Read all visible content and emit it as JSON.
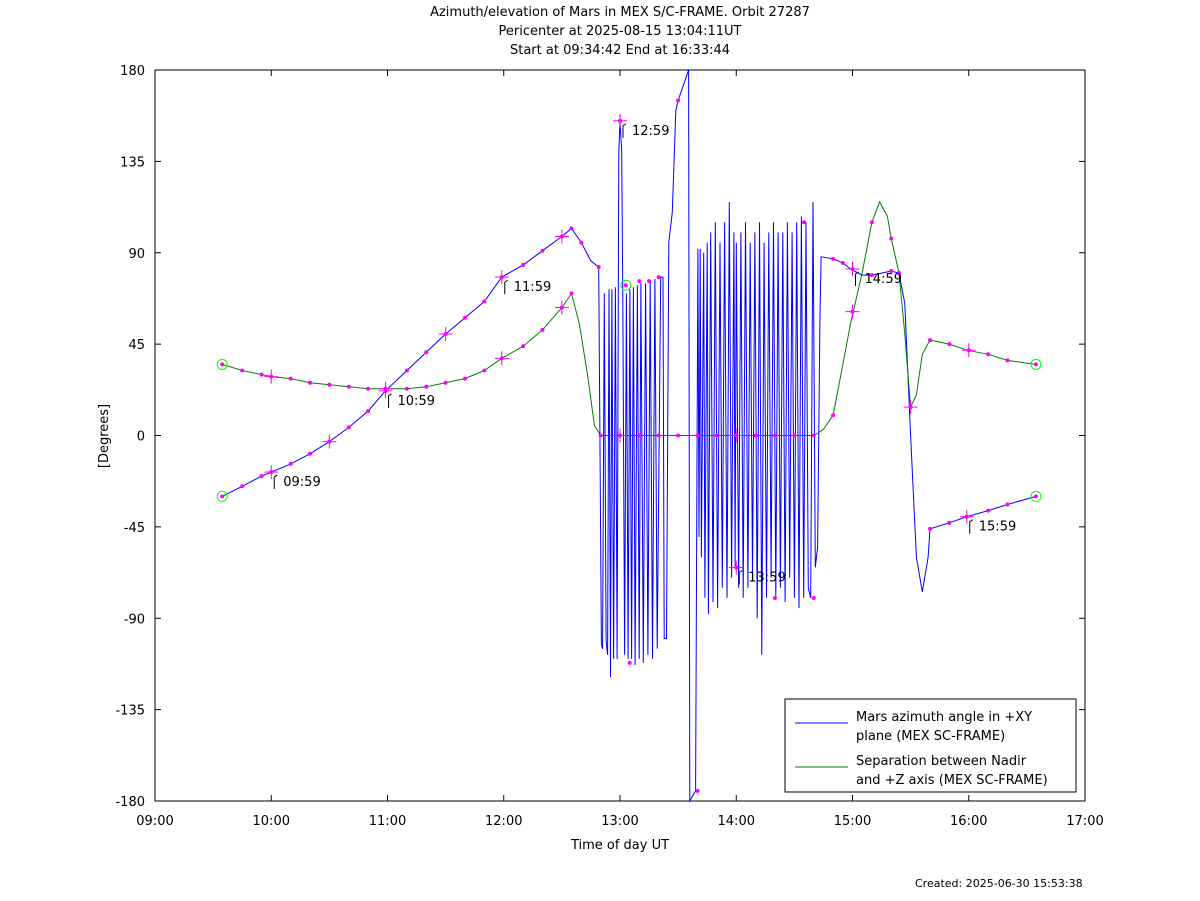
{
  "header": {
    "title_line1": "Azimuth/elevation of Mars in MEX S/C-FRAME.  Orbit 27287",
    "title_line2": "Pericenter at 2025-08-15 13:04:11UT",
    "title_line3": "Start at 09:34:42 End at 16:33:44"
  },
  "footer": {
    "created": "Created: 2025-06-30 15:53:38"
  },
  "colors": {
    "azimuth": "#0000ff",
    "separation": "#008000",
    "markers": "#ff00ff",
    "endpoints": "#00ff00"
  },
  "chart_data": {
    "type": "line",
    "xlabel": "Time of day UT",
    "ylabel": "[Degrees]",
    "xlim": [
      9,
      17
    ],
    "ylim": [
      -180,
      180
    ],
    "xticks": [
      9,
      10,
      11,
      12,
      13,
      14,
      15,
      16,
      17
    ],
    "xtick_labels": [
      "09:00",
      "10:00",
      "11:00",
      "12:00",
      "13:00",
      "14:00",
      "15:00",
      "16:00",
      "17:00"
    ],
    "yticks": [
      180,
      135,
      90,
      45,
      0,
      -45,
      -90,
      -135,
      -180
    ],
    "ytick_labels": [
      "180",
      "135",
      "90",
      "45",
      "0",
      "-45",
      "-90",
      "-135",
      "-180"
    ],
    "grid": false,
    "legend_position": "bottom-right",
    "series": [
      {
        "name": "Mars azimuth angle in +XY plane (MEX SC-FRAME)",
        "legend_line1": "Mars azimuth angle in +XY",
        "legend_line2": "plane (MEX SC-FRAME)",
        "color": "#0000ff",
        "points": [
          [
            9.578,
            -30
          ],
          [
            9.75,
            -25
          ],
          [
            9.917,
            -20
          ],
          [
            10.0,
            -18
          ],
          [
            10.167,
            -14
          ],
          [
            10.333,
            -9
          ],
          [
            10.5,
            -3
          ],
          [
            10.667,
            4
          ],
          [
            10.833,
            12
          ],
          [
            10.983,
            22
          ],
          [
            11.167,
            32
          ],
          [
            11.333,
            41
          ],
          [
            11.5,
            50
          ],
          [
            11.667,
            58
          ],
          [
            11.833,
            66
          ],
          [
            11.983,
            78
          ],
          [
            12.167,
            84
          ],
          [
            12.333,
            91
          ],
          [
            12.5,
            98
          ],
          [
            12.583,
            102
          ],
          [
            12.667,
            95
          ],
          [
            12.75,
            86
          ],
          [
            12.817,
            83
          ],
          [
            12.83,
            -20
          ],
          [
            12.84,
            -103
          ],
          [
            12.85,
            -105
          ],
          [
            12.865,
            70
          ],
          [
            12.88,
            -101
          ],
          [
            12.893,
            -108
          ],
          [
            12.905,
            72
          ],
          [
            12.918,
            -119
          ],
          [
            12.93,
            72
          ],
          [
            12.945,
            -110
          ],
          [
            12.96,
            73
          ],
          [
            12.975,
            -110
          ],
          [
            12.99,
            140
          ],
          [
            13.0,
            155
          ],
          [
            13.015,
            140
          ],
          [
            13.025,
            60
          ],
          [
            13.04,
            -108
          ],
          [
            13.055,
            70
          ],
          [
            13.07,
            -110
          ],
          [
            13.085,
            72
          ],
          [
            13.1,
            -110
          ],
          [
            13.115,
            73
          ],
          [
            13.13,
            -113
          ],
          [
            13.15,
            74
          ],
          [
            13.165,
            -110
          ],
          [
            13.18,
            75
          ],
          [
            13.2,
            -112
          ],
          [
            13.22,
            75
          ],
          [
            13.24,
            -108
          ],
          [
            13.26,
            76
          ],
          [
            13.28,
            -110
          ],
          [
            13.3,
            77
          ],
          [
            13.32,
            -105
          ],
          [
            13.35,
            78
          ],
          [
            13.37,
            78
          ],
          [
            13.38,
            -100
          ],
          [
            13.4,
            -100
          ],
          [
            13.42,
            95
          ],
          [
            13.45,
            110
          ],
          [
            13.48,
            160
          ],
          [
            13.5,
            165
          ],
          [
            13.56,
            175
          ],
          [
            13.59,
            180
          ],
          [
            13.6,
            -180
          ],
          [
            13.62,
            -178
          ],
          [
            13.65,
            -175
          ],
          [
            13.67,
            92
          ],
          [
            13.68,
            -50
          ],
          [
            13.69,
            92
          ],
          [
            13.7,
            -60
          ],
          [
            13.72,
            90
          ],
          [
            13.73,
            -80
          ],
          [
            13.75,
            95
          ],
          [
            13.76,
            -88
          ],
          [
            13.78,
            100
          ],
          [
            13.8,
            -82
          ],
          [
            13.82,
            105
          ],
          [
            13.84,
            -85
          ],
          [
            13.86,
            95
          ],
          [
            13.88,
            -75
          ],
          [
            13.9,
            105
          ],
          [
            13.92,
            -80
          ],
          [
            13.94,
            115
          ],
          [
            13.96,
            -70
          ],
          [
            13.98,
            100
          ],
          [
            13.99,
            -65
          ],
          [
            14.0,
            95
          ],
          [
            14.02,
            -75
          ],
          [
            14.04,
            100
          ],
          [
            14.06,
            -80
          ],
          [
            14.08,
            105
          ],
          [
            14.1,
            -75
          ],
          [
            14.12,
            95
          ],
          [
            14.14,
            -70
          ],
          [
            14.16,
            100
          ],
          [
            14.18,
            -90
          ],
          [
            14.2,
            105
          ],
          [
            14.22,
            -108
          ],
          [
            14.24,
            95
          ],
          [
            14.26,
            -80
          ],
          [
            14.28,
            100
          ],
          [
            14.3,
            -70
          ],
          [
            14.32,
            105
          ],
          [
            14.34,
            -80
          ],
          [
            14.36,
            100
          ],
          [
            14.38,
            -75
          ],
          [
            14.4,
            100
          ],
          [
            14.42,
            -82
          ],
          [
            14.44,
            105
          ],
          [
            14.46,
            -70
          ],
          [
            14.48,
            100
          ],
          [
            14.5,
            -80
          ],
          [
            14.52,
            105
          ],
          [
            14.54,
            -85
          ],
          [
            14.56,
            108
          ],
          [
            14.58,
            -80
          ],
          [
            14.6,
            105
          ],
          [
            14.62,
            -75
          ],
          [
            14.64,
            -80
          ],
          [
            14.66,
            115
          ],
          [
            14.68,
            -65
          ],
          [
            14.7,
            -55
          ],
          [
            14.72,
            60
          ],
          [
            14.73,
            88
          ],
          [
            14.833,
            87
          ],
          [
            14.917,
            85
          ],
          [
            14.983,
            82
          ],
          [
            15.083,
            79
          ],
          [
            15.167,
            79
          ],
          [
            15.25,
            80
          ],
          [
            15.333,
            81
          ],
          [
            15.4,
            80
          ],
          [
            15.45,
            65
          ],
          [
            15.5,
            0
          ],
          [
            15.55,
            -60
          ],
          [
            15.6,
            -77
          ],
          [
            15.65,
            -60
          ],
          [
            15.667,
            -46
          ],
          [
            15.833,
            -43
          ],
          [
            15.983,
            -40
          ],
          [
            16.167,
            -37
          ],
          [
            16.333,
            -34
          ],
          [
            16.578,
            -30
          ]
        ]
      },
      {
        "name": "Separation between Nadir and +Z axis (MEX SC-FRAME)",
        "legend_line1": "Separation between Nadir",
        "legend_line2": "and +Z axis (MEX SC-FRAME)",
        "color": "#008000",
        "points": [
          [
            9.578,
            35
          ],
          [
            9.75,
            32
          ],
          [
            9.917,
            30
          ],
          [
            10.0,
            29
          ],
          [
            10.167,
            28
          ],
          [
            10.333,
            26
          ],
          [
            10.5,
            25
          ],
          [
            10.667,
            24
          ],
          [
            10.833,
            23
          ],
          [
            10.983,
            23
          ],
          [
            11.167,
            23
          ],
          [
            11.333,
            24
          ],
          [
            11.5,
            26
          ],
          [
            11.667,
            28
          ],
          [
            11.833,
            32
          ],
          [
            11.983,
            38
          ],
          [
            12.167,
            44
          ],
          [
            12.333,
            52
          ],
          [
            12.5,
            63
          ],
          [
            12.583,
            70
          ],
          [
            12.65,
            55
          ],
          [
            12.72,
            30
          ],
          [
            12.78,
            5
          ],
          [
            12.833,
            0
          ],
          [
            13.0,
            0
          ],
          [
            13.5,
            0
          ],
          [
            14.0,
            0
          ],
          [
            14.5,
            0
          ],
          [
            14.667,
            0
          ],
          [
            14.75,
            3
          ],
          [
            14.833,
            10
          ],
          [
            14.9,
            30
          ],
          [
            14.983,
            55
          ],
          [
            15.083,
            80
          ],
          [
            15.167,
            105
          ],
          [
            15.233,
            115
          ],
          [
            15.3,
            108
          ],
          [
            15.333,
            97
          ],
          [
            15.4,
            80
          ],
          [
            15.45,
            50
          ],
          [
            15.5,
            14
          ],
          [
            15.55,
            20
          ],
          [
            15.6,
            40
          ],
          [
            15.667,
            47
          ],
          [
            15.833,
            45
          ],
          [
            15.983,
            42
          ],
          [
            16.167,
            40
          ],
          [
            16.333,
            37
          ],
          [
            16.578,
            35
          ]
        ]
      }
    ],
    "markers": [
      [
        10.0,
        -18
      ],
      [
        10.5,
        -3
      ],
      [
        10.983,
        22
      ],
      [
        11.5,
        50
      ],
      [
        11.983,
        78
      ],
      [
        12.5,
        98
      ],
      [
        13.0,
        155
      ],
      [
        13.0,
        0
      ],
      [
        14.0,
        -65
      ],
      [
        14.0,
        0
      ],
      [
        15.0,
        82
      ],
      [
        15.0,
        61
      ],
      [
        15.5,
        14
      ],
      [
        15.983,
        -40
      ],
      [
        10.0,
        29
      ],
      [
        10.983,
        23
      ],
      [
        11.983,
        38
      ],
      [
        12.5,
        63
      ],
      [
        16.0,
        42
      ]
    ],
    "markers_small": [
      [
        9.75,
        -25
      ],
      [
        9.917,
        -20
      ],
      [
        10.167,
        -14
      ],
      [
        10.333,
        -9
      ],
      [
        10.667,
        4
      ],
      [
        10.833,
        12
      ],
      [
        11.167,
        32
      ],
      [
        11.333,
        41
      ],
      [
        11.667,
        58
      ],
      [
        11.833,
        66
      ],
      [
        12.167,
        84
      ],
      [
        12.333,
        91
      ],
      [
        12.583,
        102
      ],
      [
        12.667,
        95
      ],
      [
        12.817,
        83
      ],
      [
        13.083,
        -112
      ],
      [
        13.167,
        76
      ],
      [
        13.25,
        76
      ],
      [
        13.333,
        78
      ],
      [
        13.5,
        165
      ],
      [
        13.667,
        -175
      ],
      [
        14.333,
        -80
      ],
      [
        14.583,
        105
      ],
      [
        14.667,
        -80
      ],
      [
        14.833,
        87
      ],
      [
        14.917,
        85
      ],
      [
        15.167,
        79
      ],
      [
        15.333,
        81
      ],
      [
        15.4,
        80
      ],
      [
        15.667,
        -46
      ],
      [
        15.833,
        -43
      ],
      [
        16.167,
        -37
      ],
      [
        16.333,
        -34
      ],
      [
        9.75,
        32
      ],
      [
        9.917,
        30
      ],
      [
        10.167,
        28
      ],
      [
        10.333,
        26
      ],
      [
        10.5,
        25
      ],
      [
        10.667,
        24
      ],
      [
        10.833,
        23
      ],
      [
        11.167,
        23
      ],
      [
        11.333,
        24
      ],
      [
        11.5,
        26
      ],
      [
        11.667,
        28
      ],
      [
        11.833,
        32
      ],
      [
        12.167,
        44
      ],
      [
        12.333,
        52
      ],
      [
        12.583,
        70
      ],
      [
        12.833,
        0
      ],
      [
        13.167,
        0
      ],
      [
        13.333,
        0
      ],
      [
        13.5,
        0
      ],
      [
        13.667,
        0
      ],
      [
        13.833,
        0
      ],
      [
        14.167,
        0
      ],
      [
        14.333,
        0
      ],
      [
        14.5,
        0
      ],
      [
        14.667,
        0
      ],
      [
        14.833,
        10
      ],
      [
        15.167,
        105
      ],
      [
        15.333,
        97
      ],
      [
        15.667,
        47
      ],
      [
        15.833,
        45
      ],
      [
        16.167,
        40
      ],
      [
        16.333,
        37
      ]
    ],
    "endpoints": [
      [
        9.578,
        35
      ],
      [
        9.578,
        -30
      ],
      [
        16.578,
        35
      ],
      [
        16.578,
        -30
      ],
      [
        13.05,
        74
      ]
    ],
    "annotations": [
      {
        "x": 10.0,
        "y": -18,
        "text": "09:59"
      },
      {
        "x": 10.983,
        "y": 22,
        "text": "10:59"
      },
      {
        "x": 11.983,
        "y": 78,
        "text": "11:59"
      },
      {
        "x": 13.0,
        "y": 155,
        "text": "12:59"
      },
      {
        "x": 14.0,
        "y": -65,
        "text": "13:59"
      },
      {
        "x": 15.0,
        "y": 82,
        "text": "14:59"
      },
      {
        "x": 15.983,
        "y": -40,
        "text": "15:59"
      }
    ]
  }
}
